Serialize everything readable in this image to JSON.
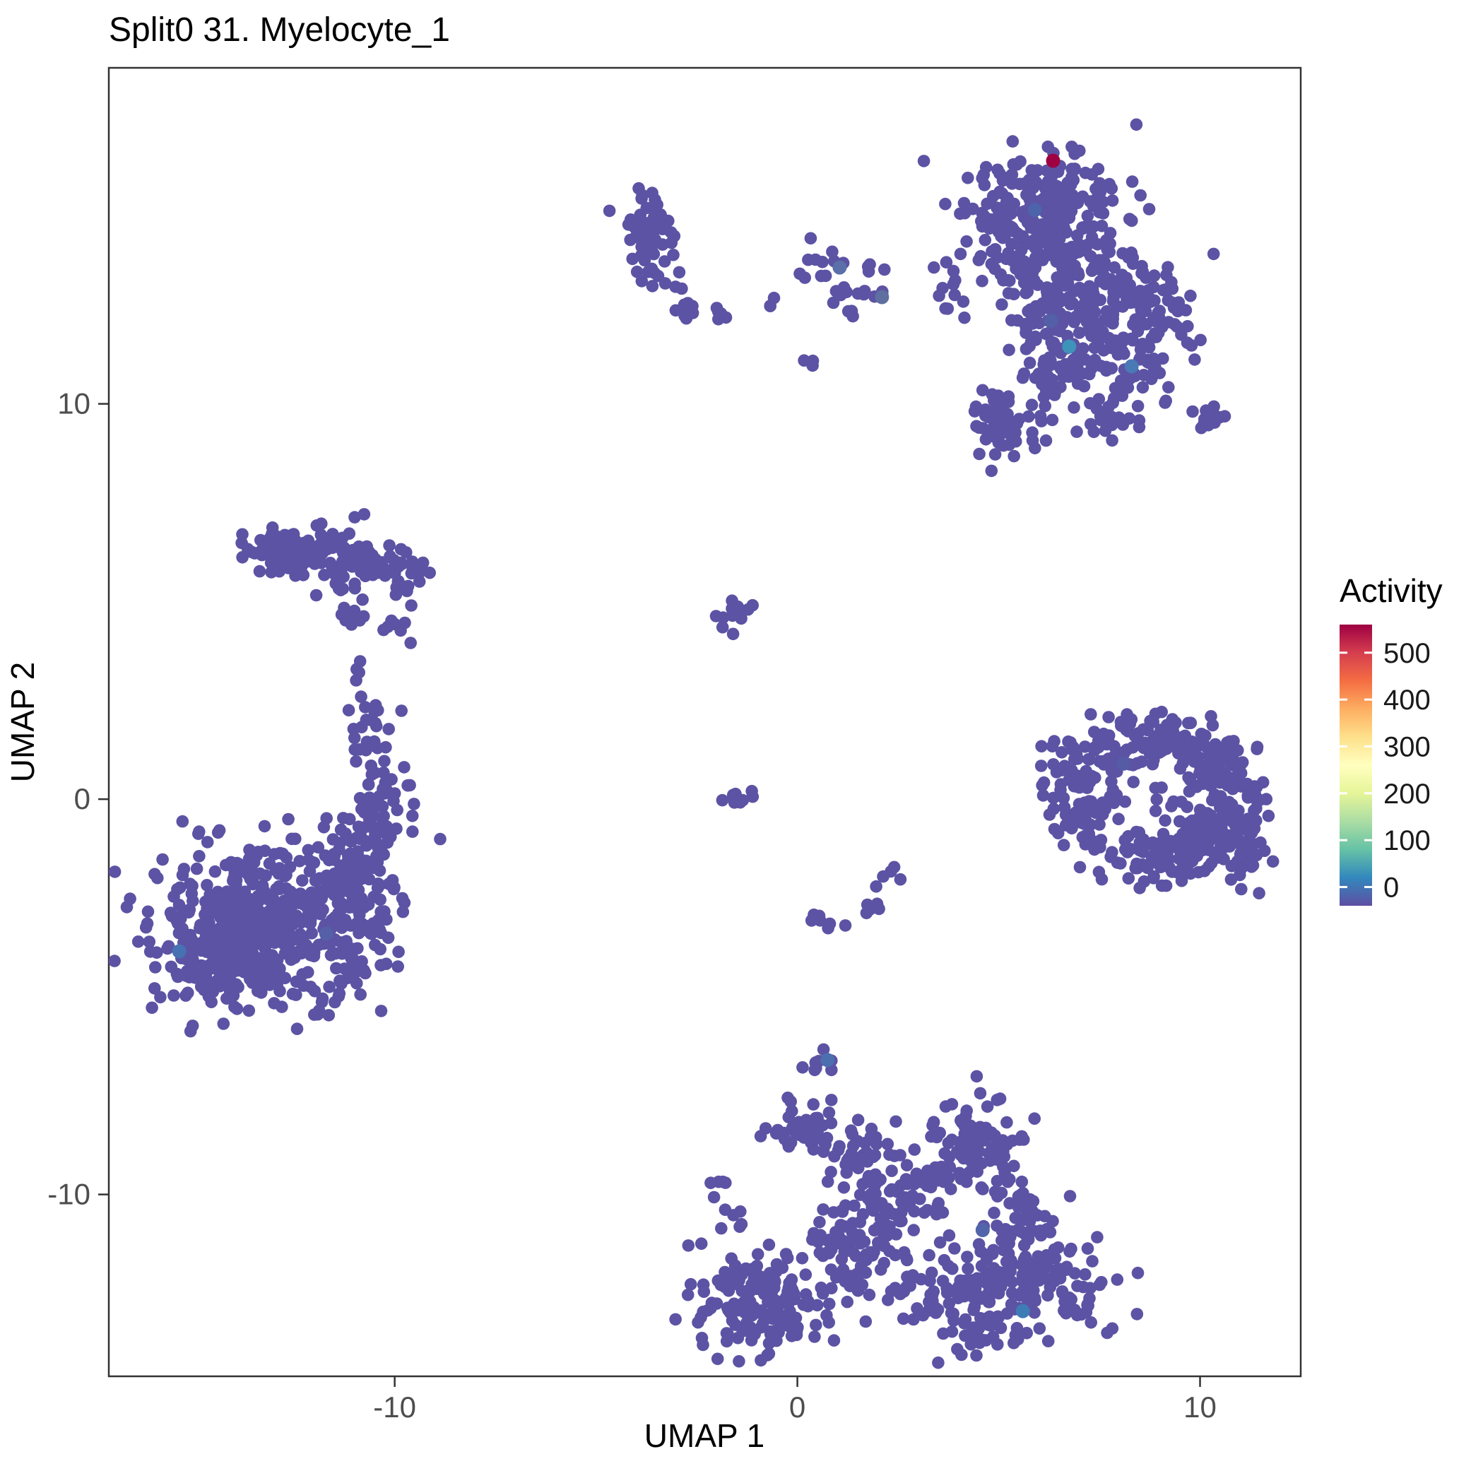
{
  "title": "Split0 31. Myelocyte_1",
  "axes": {
    "x": {
      "label": "UMAP 1",
      "ticks": [
        "-10",
        "0",
        "10"
      ],
      "tick_values": [
        -10,
        0,
        10
      ]
    },
    "y": {
      "label": "UMAP 2",
      "ticks": [
        "10",
        "0",
        "-10"
      ],
      "tick_values": [
        10,
        0,
        -10
      ]
    }
  },
  "legend": {
    "title": "Activity",
    "tick_labels": [
      "500",
      "400",
      "300",
      "200",
      "100",
      "0"
    ],
    "tick_values": [
      500,
      400,
      300,
      200,
      100,
      0
    ],
    "domain": [
      -40,
      560
    ],
    "gradient_colors": [
      "#5E4FA2",
      "#3288BD",
      "#66C2A5",
      "#ABDDA4",
      "#E6F598",
      "#FFFFBF",
      "#FEE08B",
      "#FDAE61",
      "#F46D43",
      "#D53E4F",
      "#9E0142"
    ]
  },
  "colors": {
    "point_base": "#5C53A4",
    "panel_border": "#333333",
    "tick": "#333333",
    "tick_label": "#4D4D4D",
    "background": "#FFFFFF",
    "high_activity": "#9E0142"
  },
  "chart_data": {
    "type": "scatter",
    "title": "Split0 31. Myelocyte_1",
    "xlabel": "UMAP 1",
    "ylabel": "UMAP 2",
    "xlim": [
      -17.1,
      12.5
    ],
    "ylim": [
      -14.6,
      18.5
    ],
    "seed": 1337,
    "point_radius_px": 8.8,
    "special_point_radius_px": 10,
    "clusters": [
      {
        "name": "tr-main",
        "type": "gauss",
        "cx": 6.0,
        "cy": 14.3,
        "sx": 1.0,
        "sy": 0.95,
        "n": 270
      },
      {
        "name": "tr-top",
        "type": "gauss",
        "cx": 6.5,
        "cy": 15.5,
        "sx": 0.55,
        "sy": 0.45,
        "n": 50
      },
      {
        "name": "tr-mid",
        "type": "gauss",
        "cx": 7.4,
        "cy": 12.5,
        "sx": 0.9,
        "sy": 0.7,
        "n": 130
      },
      {
        "name": "tr-right",
        "type": "gauss",
        "cx": 8.8,
        "cy": 12.3,
        "sx": 0.65,
        "sy": 0.55,
        "n": 65
      },
      {
        "name": "tr-low",
        "type": "gauss",
        "cx": 6.6,
        "cy": 11.1,
        "sx": 0.8,
        "sy": 0.75,
        "n": 95
      },
      {
        "name": "tr-low2",
        "type": "gauss",
        "cx": 8.4,
        "cy": 10.8,
        "sx": 0.45,
        "sy": 0.4,
        "n": 25
      },
      {
        "name": "tr-bl-blob",
        "type": "gauss",
        "cx": 5.2,
        "cy": 9.4,
        "sx": 0.5,
        "sy": 0.4,
        "n": 50
      },
      {
        "name": "tr-bl-spike",
        "type": "strand",
        "x1": 4.9,
        "y1": 10.3,
        "x2": 5.3,
        "y2": 9.2,
        "jitter": 0.15,
        "n": 10
      },
      {
        "name": "tr-b-strand",
        "type": "gauss",
        "cx": 7.9,
        "cy": 9.6,
        "sx": 0.45,
        "sy": 0.25,
        "n": 20
      },
      {
        "name": "tr-r-strand",
        "type": "strand",
        "x1": 9.9,
        "y1": 9.55,
        "x2": 10.7,
        "y2": 9.8,
        "jitter": 0.12,
        "n": 14
      },
      {
        "name": "tr-left-scatter",
        "type": "gauss",
        "cx": 3.8,
        "cy": 12.7,
        "sx": 0.35,
        "sy": 0.28,
        "n": 8
      },
      {
        "name": "tl-blob",
        "type": "gauss",
        "cx": -3.75,
        "cy": 14.2,
        "sx": 0.38,
        "sy": 0.6,
        "n": 60
      },
      {
        "name": "tl-tail",
        "type": "strand",
        "x1": -3.5,
        "y1": 13.3,
        "x2": -3.1,
        "y2": 13.0,
        "jitter": 0.1,
        "n": 4
      },
      {
        "name": "mid-strand1",
        "type": "strand",
        "x1": -3.2,
        "y1": 12.3,
        "x2": -2.4,
        "y2": 12.4,
        "jitter": 0.1,
        "n": 11
      },
      {
        "name": "mid-dots1",
        "type": "gauss",
        "cx": -1.85,
        "cy": 12.3,
        "sx": 0.18,
        "sy": 0.12,
        "n": 5
      },
      {
        "name": "mid-dots2",
        "type": "gauss",
        "cx": -0.55,
        "cy": 12.45,
        "sx": 0.14,
        "sy": 0.1,
        "n": 3
      },
      {
        "name": "mid-blob1",
        "type": "gauss",
        "cx": 0.65,
        "cy": 13.3,
        "sx": 0.3,
        "sy": 0.38,
        "n": 15
      },
      {
        "name": "mid-blob2",
        "type": "gauss",
        "cx": 1.8,
        "cy": 13.0,
        "sx": 0.28,
        "sy": 0.33,
        "n": 11
      },
      {
        "name": "mid-dots3",
        "type": "gauss",
        "cx": 1.35,
        "cy": 12.2,
        "sx": 0.15,
        "sy": 0.1,
        "n": 3
      },
      {
        "name": "mid-dot4",
        "type": "gauss",
        "cx": 0.25,
        "cy": 11.0,
        "sx": 0.12,
        "sy": 0.1,
        "n": 3
      },
      {
        "name": "ring",
        "type": "ring",
        "cx": 8.9,
        "cy": 0.1,
        "rx": 2.0,
        "ry": 1.55,
        "thickness": 0.22,
        "n": 230
      },
      {
        "name": "ring-left",
        "type": "gauss",
        "cx": 7.0,
        "cy": 0.4,
        "sx": 0.45,
        "sy": 0.65,
        "n": 55
      },
      {
        "name": "ring-br",
        "type": "gauss",
        "cx": 10.5,
        "cy": -0.9,
        "sx": 0.65,
        "sy": 0.6,
        "n": 110
      },
      {
        "name": "ring-top",
        "type": "gauss",
        "cx": 8.7,
        "cy": 1.55,
        "sx": 0.8,
        "sy": 0.28,
        "n": 50
      },
      {
        "name": "ring-bottom",
        "type": "gauss",
        "cx": 8.7,
        "cy": -1.6,
        "sx": 0.8,
        "sy": 0.3,
        "n": 45
      },
      {
        "name": "ring-right-top",
        "type": "gauss",
        "cx": 10.4,
        "cy": 0.9,
        "sx": 0.4,
        "sy": 0.4,
        "n": 35
      },
      {
        "name": "ring-inner",
        "type": "gauss",
        "cx": 8.9,
        "cy": 0.2,
        "sx": 0.6,
        "sy": 0.5,
        "n": 8
      },
      {
        "name": "left-band",
        "type": "strand",
        "x1": -13.2,
        "y1": 6.3,
        "x2": -9.5,
        "y2": 5.8,
        "jitter": 0.32,
        "n": 140
      },
      {
        "name": "left-band-core",
        "type": "gauss",
        "cx": -12.5,
        "cy": 6.3,
        "sx": 0.55,
        "sy": 0.3,
        "n": 45
      },
      {
        "name": "left-sub1",
        "type": "gauss",
        "cx": -11.2,
        "cy": 4.8,
        "sx": 0.3,
        "sy": 0.4,
        "n": 14
      },
      {
        "name": "left-sub2",
        "type": "gauss",
        "cx": -9.8,
        "cy": 4.6,
        "sx": 0.28,
        "sy": 0.28,
        "n": 8
      },
      {
        "name": "left-sub3",
        "type": "gauss",
        "cx": -10.9,
        "cy": 3.4,
        "sx": 0.12,
        "sy": 0.12,
        "n": 3
      },
      {
        "name": "left-arm",
        "type": "strand",
        "x1": -10.8,
        "y1": 2.7,
        "x2": -10.3,
        "y2": 0.5,
        "jitter": 0.28,
        "n": 28
      },
      {
        "name": "left-arm2",
        "type": "gauss",
        "cx": -10.4,
        "cy": -0.3,
        "sx": 0.5,
        "sy": 0.6,
        "n": 50
      },
      {
        "name": "left-neck",
        "type": "gauss",
        "cx": -11.0,
        "cy": -1.6,
        "sx": 0.55,
        "sy": 0.55,
        "n": 55
      },
      {
        "name": "left-main",
        "type": "gauss",
        "cx": -13.4,
        "cy": -3.2,
        "sx": 1.35,
        "sy": 1.15,
        "n": 420
      },
      {
        "name": "left-core",
        "type": "gauss",
        "cx": -14.0,
        "cy": -3.8,
        "sx": 0.85,
        "sy": 0.75,
        "n": 160
      },
      {
        "name": "left-right-ext",
        "type": "gauss",
        "cx": -11.2,
        "cy": -2.9,
        "sx": 0.75,
        "sy": 0.75,
        "n": 90
      },
      {
        "name": "c-blob",
        "type": "gauss",
        "cx": -1.55,
        "cy": 4.7,
        "sx": 0.22,
        "sy": 0.28,
        "n": 14
      },
      {
        "name": "c-strand",
        "type": "strand",
        "x1": -1.8,
        "y1": 0.0,
        "x2": -0.95,
        "y2": 0.05,
        "jitter": 0.09,
        "n": 10
      },
      {
        "name": "c-dots",
        "type": "gauss",
        "cx": 2.3,
        "cy": -1.9,
        "sx": 0.16,
        "sy": 0.13,
        "n": 5
      },
      {
        "name": "c-arc1",
        "type": "strand",
        "x1": 0.35,
        "y1": -2.95,
        "x2": 1.4,
        "y2": -3.3,
        "jitter": 0.1,
        "n": 7
      },
      {
        "name": "c-arc2",
        "type": "strand",
        "x1": 1.5,
        "y1": -3.2,
        "x2": 2.15,
        "y2": -2.55,
        "jitter": 0.1,
        "n": 5
      },
      {
        "name": "b-left",
        "type": "gauss",
        "cx": -0.9,
        "cy": -12.7,
        "sx": 0.9,
        "sy": 0.7,
        "n": 180
      },
      {
        "name": "b-left-top1",
        "type": "gauss",
        "cx": -1.9,
        "cy": -9.7,
        "sx": 0.16,
        "sy": 0.22,
        "n": 5
      },
      {
        "name": "b-left-top2",
        "type": "gauss",
        "cx": -1.6,
        "cy": -10.6,
        "sx": 0.2,
        "sy": 0.2,
        "n": 6
      },
      {
        "name": "b-top",
        "type": "gauss",
        "cx": 0.55,
        "cy": -6.9,
        "sx": 0.25,
        "sy": 0.3,
        "n": 10
      },
      {
        "name": "b-top2",
        "type": "gauss",
        "cx": 0.3,
        "cy": -8.3,
        "sx": 0.5,
        "sy": 0.45,
        "n": 45
      },
      {
        "name": "b-top3",
        "type": "gauss",
        "cx": 1.5,
        "cy": -9.0,
        "sx": 0.5,
        "sy": 0.4,
        "n": 35
      },
      {
        "name": "b-mid",
        "type": "gauss",
        "cx": 2.3,
        "cy": -10.3,
        "sx": 0.6,
        "sy": 0.5,
        "n": 60
      },
      {
        "name": "b-mid2",
        "type": "gauss",
        "cx": 1.3,
        "cy": -11.3,
        "sx": 0.6,
        "sy": 0.5,
        "n": 65
      },
      {
        "name": "b-rt",
        "type": "gauss",
        "cx": 4.3,
        "cy": -8.7,
        "sx": 0.7,
        "sy": 0.6,
        "n": 85
      },
      {
        "name": "b-rt2",
        "type": "gauss",
        "cx": 3.2,
        "cy": -9.6,
        "sx": 0.32,
        "sy": 0.3,
        "n": 15
      },
      {
        "name": "b-r",
        "type": "gauss",
        "cx": 5.4,
        "cy": -10.7,
        "sx": 0.5,
        "sy": 0.5,
        "n": 50
      },
      {
        "name": "b-br",
        "type": "gauss",
        "cx": 6.0,
        "cy": -12.3,
        "sx": 0.8,
        "sy": 0.6,
        "n": 115
      },
      {
        "name": "b-bm",
        "type": "gauss",
        "cx": 3.7,
        "cy": -12.5,
        "sx": 0.75,
        "sy": 0.6,
        "n": 85
      },
      {
        "name": "b-bot",
        "type": "gauss",
        "cx": 4.8,
        "cy": -13.4,
        "sx": 0.5,
        "sy": 0.3,
        "n": 30
      },
      {
        "name": "b-dot",
        "type": "gauss",
        "cx": 4.9,
        "cy": -7.6,
        "sx": 0.12,
        "sy": 0.1,
        "n": 2
      }
    ],
    "special_points": [
      {
        "x": 6.35,
        "y": 16.15,
        "activity": 540,
        "color": "#9E0142"
      },
      {
        "x": 6.75,
        "y": 11.45,
        "activity": 130,
        "color": "#3D93B8"
      },
      {
        "x": 8.3,
        "y": 10.95,
        "activity": 70,
        "color": "#4A79B5"
      },
      {
        "x": 5.9,
        "y": 14.9,
        "activity": 45,
        "color": "#4D63AB"
      },
      {
        "x": 6.3,
        "y": 12.1,
        "activity": 40,
        "color": "#535FA6"
      },
      {
        "x": 1.05,
        "y": 13.45,
        "activity": 35,
        "color": "#5B6FA8"
      },
      {
        "x": 2.1,
        "y": 12.7,
        "activity": 30,
        "color": "#5E6FA0"
      },
      {
        "x": -15.35,
        "y": -3.85,
        "activity": 60,
        "color": "#4671B2"
      },
      {
        "x": -11.7,
        "y": -3.4,
        "activity": 30,
        "color": "#5560A8"
      },
      {
        "x": 0.75,
        "y": -6.6,
        "activity": 55,
        "color": "#4B6FAF"
      },
      {
        "x": 4.6,
        "y": -10.9,
        "activity": 40,
        "color": "#5365AA"
      },
      {
        "x": 5.6,
        "y": -12.95,
        "activity": 65,
        "color": "#3F7CB5"
      },
      {
        "x": 8.1,
        "y": 0.9,
        "activity": 25,
        "color": "#555CA5"
      }
    ]
  }
}
